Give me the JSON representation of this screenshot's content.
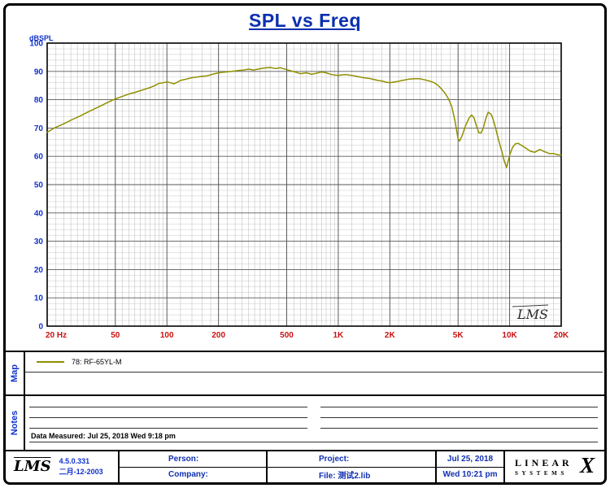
{
  "header": {
    "title": "SPL vs Freq"
  },
  "colors": {
    "title_blue": "#0a2fae",
    "axis_blue": "#1133cc",
    "tick_red": "#cc1111",
    "curve_olive": "#8f8f00"
  },
  "chart_data": {
    "type": "line",
    "title": "SPL vs Freq",
    "ylabel": "dBSPL",
    "x_scale": "log",
    "xlim": [
      20,
      20000
    ],
    "ylim": [
      0,
      100
    ],
    "y_major_step": 10,
    "y_minor_step": 2,
    "grid": true,
    "watermark": "LMS",
    "tick_color_x": "#cc1111",
    "tick_color_y": "#1133cc",
    "xticks": [
      {
        "value": 20,
        "label": "20 Hz"
      },
      {
        "value": 50,
        "label": "50"
      },
      {
        "value": 100,
        "label": "100"
      },
      {
        "value": 200,
        "label": "200"
      },
      {
        "value": 500,
        "label": "500"
      },
      {
        "value": 1000,
        "label": "1K"
      },
      {
        "value": 2000,
        "label": "2K"
      },
      {
        "value": 5000,
        "label": "5K"
      },
      {
        "value": 10000,
        "label": "10K"
      },
      {
        "value": 20000,
        "label": "20K"
      }
    ],
    "yticks": [
      0,
      10,
      20,
      30,
      40,
      50,
      60,
      70,
      80,
      90,
      100
    ],
    "series": [
      {
        "name": "78: RF-65YL-M",
        "color": "#8f8f00",
        "x": [
          20,
          22,
          25,
          28,
          31,
          35,
          40,
          45,
          50,
          55,
          60,
          65,
          70,
          75,
          80,
          85,
          90,
          95,
          100,
          105,
          110,
          115,
          120,
          130,
          140,
          150,
          160,
          170,
          180,
          190,
          200,
          220,
          240,
          260,
          280,
          300,
          320,
          340,
          370,
          400,
          430,
          460,
          500,
          530,
          560,
          600,
          650,
          700,
          750,
          800,
          850,
          900,
          950,
          1000,
          1100,
          1200,
          1300,
          1400,
          1500,
          1600,
          1700,
          1800,
          1900,
          2000,
          2200,
          2400,
          2600,
          2800,
          3000,
          3200,
          3400,
          3600,
          3800,
          4000,
          4200,
          4400,
          4600,
          4800,
          5000,
          5100,
          5300,
          5500,
          5800,
          6000,
          6200,
          6400,
          6600,
          6800,
          7000,
          7300,
          7500,
          7800,
          8000,
          8300,
          8600,
          9000,
          9300,
          9600,
          10000,
          10400,
          10800,
          11200,
          11800,
          12500,
          13200,
          14000,
          15000,
          16000,
          17000,
          18000,
          19000,
          20000
        ],
        "y": [
          68.5,
          70,
          71.5,
          73,
          74.2,
          75.8,
          77.5,
          79,
          80.3,
          81.2,
          82,
          82.6,
          83.2,
          83.8,
          84.3,
          85,
          85.8,
          86,
          86.3,
          86,
          85.6,
          86.2,
          86.8,
          87.3,
          87.8,
          88,
          88.3,
          88.4,
          88.8,
          89.2,
          89.5,
          89.8,
          90,
          90.3,
          90.5,
          90.8,
          90.5,
          90.8,
          91.2,
          91.4,
          91,
          91.3,
          90.6,
          90.2,
          89.8,
          89.2,
          89.5,
          89,
          89.4,
          89.8,
          89.5,
          89,
          88.7,
          88.6,
          88.9,
          88.6,
          88.2,
          87.8,
          87.6,
          87.2,
          86.8,
          86.6,
          86.2,
          86,
          86.4,
          86.9,
          87.3,
          87.4,
          87.4,
          87,
          86.6,
          86.1,
          85.2,
          83.8,
          82.3,
          80.3,
          77.5,
          72.5,
          66.2,
          65.4,
          67.5,
          70.5,
          73.5,
          74.6,
          73.6,
          70.8,
          68.4,
          68.2,
          69.8,
          73.8,
          75.6,
          74.8,
          73.2,
          69.8,
          66,
          61.8,
          58.4,
          56,
          60.4,
          63.2,
          64.4,
          64.6,
          63.8,
          62.8,
          61.8,
          61.4,
          62.4,
          61.6,
          61,
          61,
          60.6,
          60.4
        ]
      }
    ]
  },
  "map": {
    "label": "Map"
  },
  "notes": {
    "label": "Notes",
    "data_measured": "Data Measured: Jul 25, 2018  Wed  9:18 pm"
  },
  "footer": {
    "logo": "LMS",
    "version": "4.5.0.331",
    "version_date": "二月-12-2003",
    "person_label": "Person:",
    "company_label": "Company:",
    "project_label": "Project:",
    "file_label": "File: 测试2.lib",
    "date": "Jul 25, 2018",
    "time": "Wed 10:21 pm",
    "brand_line1": "LINEAR",
    "brand_x": "X",
    "brand_line2": "SYSTEMS"
  }
}
